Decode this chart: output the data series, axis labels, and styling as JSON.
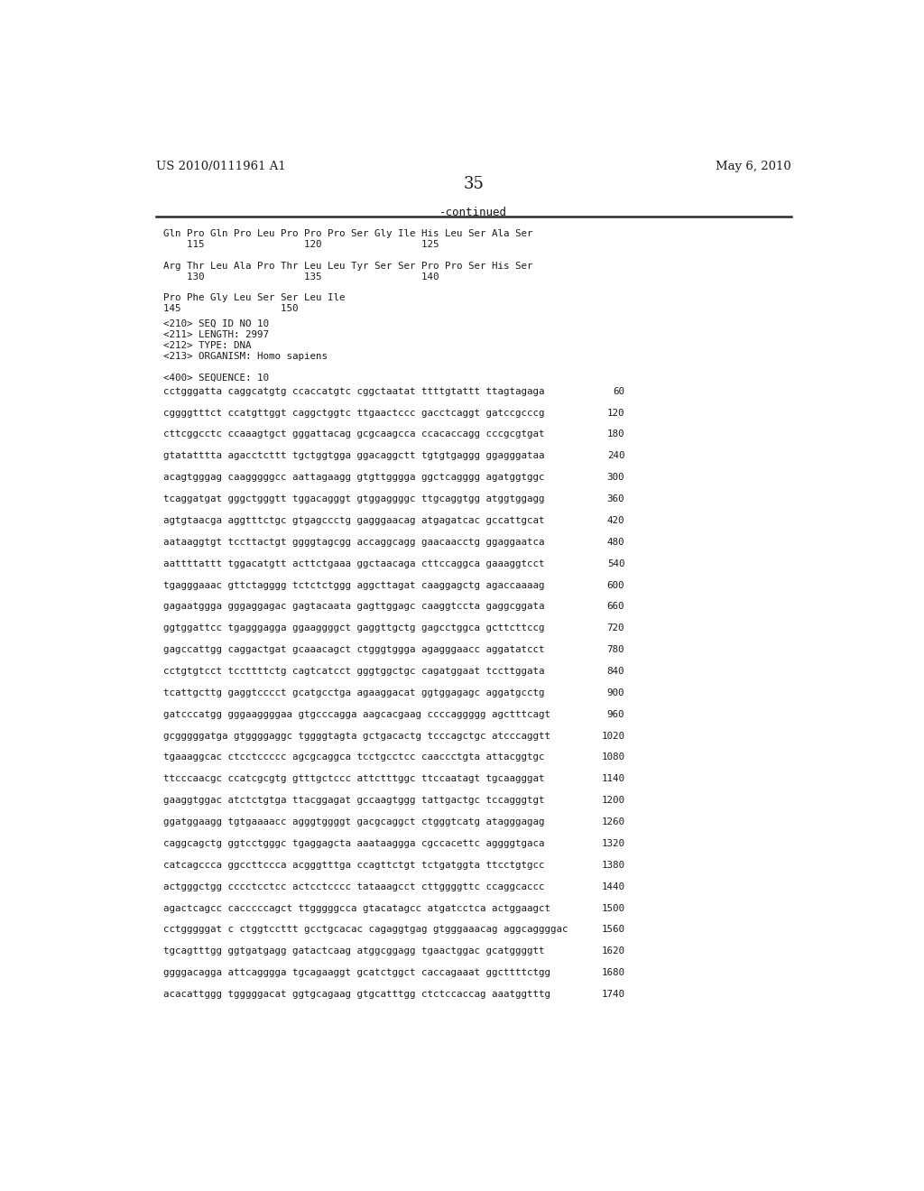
{
  "header_left": "US 2010/0111961 A1",
  "header_right": "May 6, 2010",
  "page_number": "35",
  "continued_text": "-continued",
  "bg_color": "#ffffff",
  "text_color": "#1a1a1a",
  "protein_lines": [
    "Gln Pro Gln Pro Leu Pro Pro Pro Ser Gly Ile His Leu Ser Ala Ser",
    "    115                 120                 125",
    "",
    "Arg Thr Leu Ala Pro Thr Leu Leu Tyr Ser Ser Pro Pro Ser His Ser",
    "    130                 135                 140",
    "",
    "Pro Phe Gly Leu Ser Ser Leu Ile",
    "145                 150"
  ],
  "meta_lines": [
    "<210> SEQ ID NO 10",
    "<211> LENGTH: 2997",
    "<212> TYPE: DNA",
    "<213> ORGANISM: Homo sapiens",
    "",
    "<400> SEQUENCE: 10"
  ],
  "sequence_lines": [
    [
      "cctgggatta caggcatgtg ccaccatgtc cggctaatat ttttgtattt ttagtagaga",
      "60"
    ],
    [
      "cggggtttct ccatgttggt caggctggtc ttgaactccc gacctcaggt gatccgcccg",
      "120"
    ],
    [
      "cttcggcctc ccaaagtgct gggattacag gcgcaagcca ccacaccagg cccgcgtgat",
      "180"
    ],
    [
      "gtatatttta agacctcttt tgctggtgga ggacaggctt tgtgtgaggg ggagggataa",
      "240"
    ],
    [
      "acagtgggag caagggggcc aattagaagg gtgttgggga ggctcagggg agatggtggc",
      "300"
    ],
    [
      "tcaggatgat gggctgggtt tggacagggt gtggaggggc ttgcaggtgg atggtggagg",
      "360"
    ],
    [
      "agtgtaacga aggtttctgc gtgagccctg gagggaacag atgagatcac gccattgcat",
      "420"
    ],
    [
      "aataaggtgt tccttactgt ggggtagcgg accaggcagg gaacaacctg ggaggaatca",
      "480"
    ],
    [
      "aattttattt tggacatgtt acttctgaaa ggctaacaga cttccaggca gaaaggtcct",
      "540"
    ],
    [
      "tgagggaaac gttctagggg tctctctggg aggcttagat caaggagctg agaccaaaag",
      "600"
    ],
    [
      "gagaatggga gggaggagac gagtacaata gagttggagc caaggtccta gaggcggata",
      "660"
    ],
    [
      "ggtggattcc tgagggagga ggaaggggct gaggttgctg gagcctggca gcttcttccg",
      "720"
    ],
    [
      "gagccattgg caggactgat gcaaacagct ctgggtggga agagggaacc aggatatcct",
      "780"
    ],
    [
      "cctgtgtcct tccttttctg cagtcatcct gggtggctgc cagatggaat tccttggata",
      "840"
    ],
    [
      "tcattgcttg gaggtcccct gcatgcctga agaaggacat ggtggagagc aggatgcctg",
      "900"
    ],
    [
      "gatcccatgg gggaaggggaa gtgcccagga aagcacgaag ccccaggggg agctttcagt",
      "960"
    ],
    [
      "gcgggggatga gtggggaggc tggggtagta gctgacactg tcccagctgc atcccaggtt",
      "1020"
    ],
    [
      "tgaaaggcac ctcctccccc agcgcaggca tcctgcctcc caaccctgta attacggtgc",
      "1080"
    ],
    [
      "ttcccaacgc ccatcgcgtg gtttgctccc attctttggc ttccaatagt tgcaagggat",
      "1140"
    ],
    [
      "gaaggtggac atctctgtga ttacggagat gccaagtggg tattgactgc tccagggtgt",
      "1200"
    ],
    [
      "ggatggaagg tgtgaaaacc agggtggggt gacgcaggct ctgggtcatg atagggagag",
      "1260"
    ],
    [
      "caggcagctg ggtcctgggc tgaggagcta aaataaggga cgccacettc aggggtgaca",
      "1320"
    ],
    [
      "catcagccca ggccttccca acgggtttga ccagttctgt tctgatggta ttcctgtgcc",
      "1380"
    ],
    [
      "actgggctgg cccctcctcc actcctcccc tataaagcct cttggggttc ccaggcaccc",
      "1440"
    ],
    [
      "agactcagcc cacccccagct ttgggggcca gtacatagcc atgatcctca actggaagct",
      "1500"
    ],
    [
      "cctgggggat c ctggtccttt gcctgcacac cagaggtgag gtgggaaacag aggcaggggac",
      "1560"
    ],
    [
      "tgcagtttgg ggtgatgagg gatactcaag atggcggagg tgaactggac gcatggggtt",
      "1620"
    ],
    [
      "ggggacagga attcagggga tgcagaaggt gcatctggct caccagaaat ggcttttctgg",
      "1680"
    ],
    [
      "acacattggg tgggggacat ggtgcagaag gtgcatttgg ctctccaccag aaatggtttg",
      "1740"
    ]
  ]
}
